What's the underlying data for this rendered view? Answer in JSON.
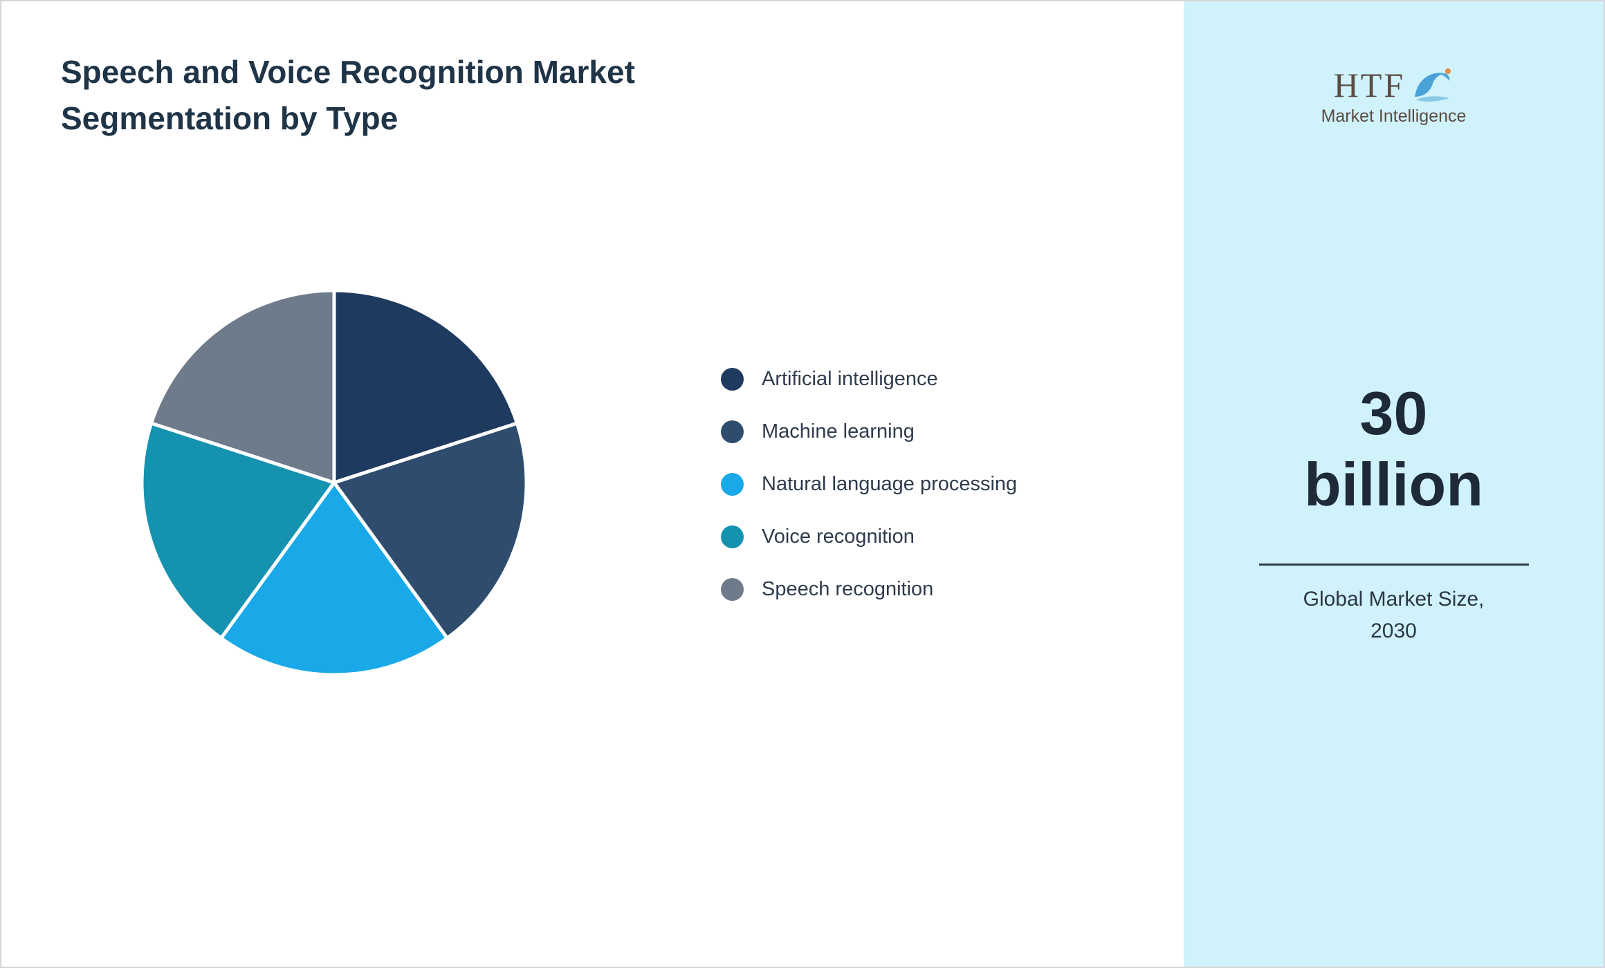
{
  "page": {
    "title": "Speech and Voice Recognition Market Segmentation by Type"
  },
  "chart_data": {
    "type": "pie",
    "title": "Speech and Voice Recognition Market Segmentation by Type",
    "categories": [
      "Artificial intelligence",
      "Machine learning",
      "Natural language processing",
      "Voice recognition",
      "Speech recognition"
    ],
    "values": [
      20,
      20,
      20,
      20,
      20
    ],
    "colors": [
      "#1f3a5f",
      "#2e4d6e",
      "#1aa9e8",
      "#1592af",
      "#6e7b8b"
    ],
    "start_angle_deg": 0,
    "direction": "clockwise",
    "legend_position": "right",
    "slice_gap_color": "#ffffff"
  },
  "legend": {
    "items": [
      {
        "label": "Artificial intelligence",
        "color": "#1f3a5f"
      },
      {
        "label": "Machine learning",
        "color": "#2e4d6e"
      },
      {
        "label": "Natural language processing",
        "color": "#1aa9e8"
      },
      {
        "label": "Voice recognition",
        "color": "#1592af"
      },
      {
        "label": "Speech recognition",
        "color": "#6e7b8b"
      }
    ]
  },
  "sidebar": {
    "background": "#d0f2fb",
    "logo": {
      "text": "HTF",
      "subtext": "Market Intelligence",
      "icon": "dolphin-icon"
    },
    "market_size_value": "30",
    "market_size_unit": "billion",
    "caption": "Global Market Size, 2030"
  }
}
